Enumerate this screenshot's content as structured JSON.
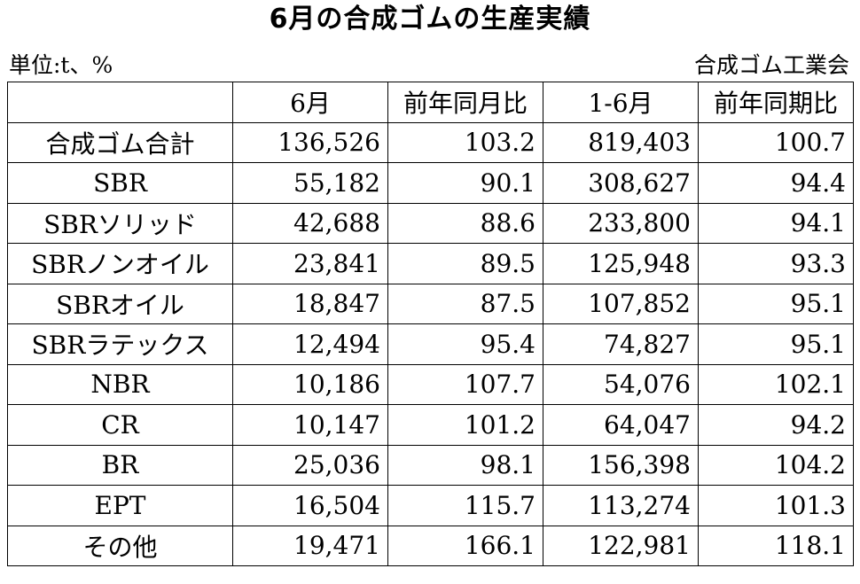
{
  "title": "6月の合成ゴムの生産実績",
  "unit_label": "単位:t、%",
  "source_label": "合成ゴム工業会",
  "table": {
    "headers": [
      "",
      "6月",
      "前年同月比",
      "1-6月",
      "前年同期比"
    ],
    "rows": [
      {
        "name": "合成ゴム合計",
        "cells": [
          "136,526",
          "103.2",
          "819,403",
          "100.7"
        ]
      },
      {
        "name": "SBR",
        "cells": [
          "55,182",
          "90.1",
          "308,627",
          "94.4"
        ]
      },
      {
        "name": "SBRソリッド",
        "cells": [
          "42,688",
          "88.6",
          "233,800",
          "94.1"
        ]
      },
      {
        "name": "SBRノンオイル",
        "cells": [
          "23,841",
          "89.5",
          "125,948",
          "93.3"
        ]
      },
      {
        "name": "SBRオイル",
        "cells": [
          "18,847",
          "87.5",
          "107,852",
          "95.1"
        ]
      },
      {
        "name": "SBRラテックス",
        "cells": [
          "12,494",
          "95.4",
          "74,827",
          "95.1"
        ]
      },
      {
        "name": "NBR",
        "cells": [
          "10,186",
          "107.7",
          "54,076",
          "102.1"
        ]
      },
      {
        "name": "CR",
        "cells": [
          "10,147",
          "101.2",
          "64,047",
          "94.2"
        ]
      },
      {
        "name": "BR",
        "cells": [
          "25,036",
          "98.1",
          "156,398",
          "104.2"
        ]
      },
      {
        "name": "EPT",
        "cells": [
          "16,504",
          "115.7",
          "113,274",
          "101.3"
        ]
      },
      {
        "name": "その他",
        "cells": [
          "19,471",
          "166.1",
          "122,981",
          "118.1"
        ]
      }
    ]
  }
}
